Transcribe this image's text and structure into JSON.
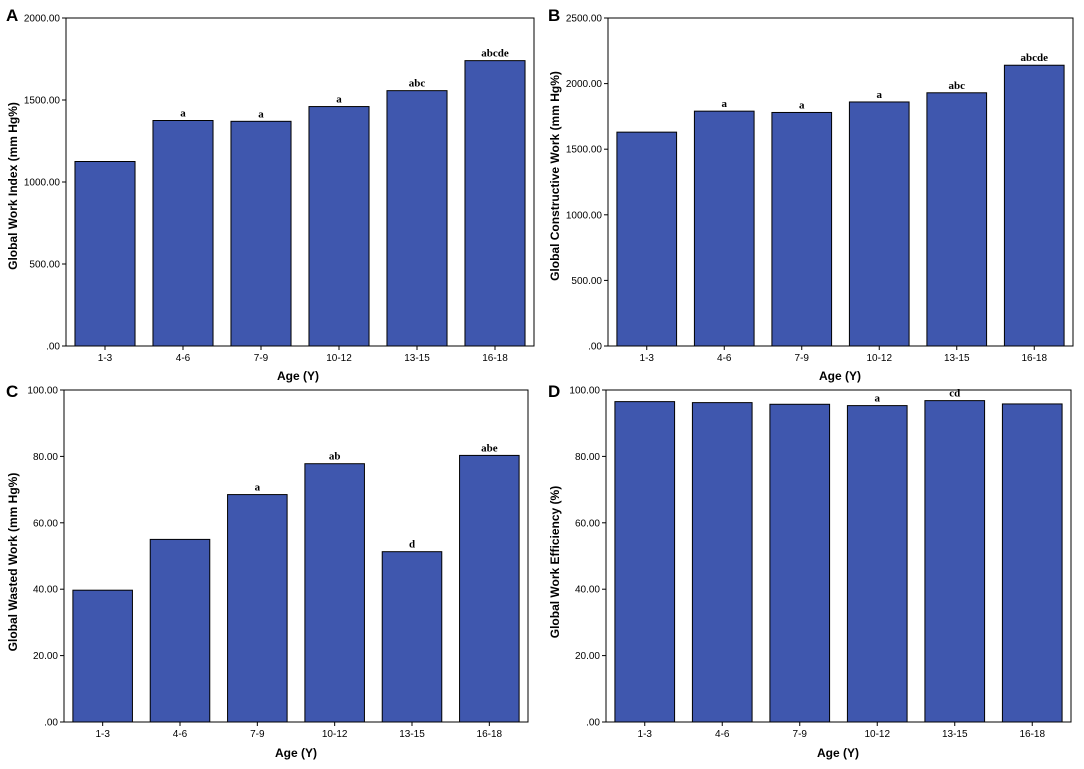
{
  "colors": {
    "bar_fill": "#3f57ae",
    "bar_stroke": "#000000",
    "frame": "#000000"
  },
  "chart_data": [
    {
      "type": "bar",
      "panel": "A",
      "categories": [
        "1-3",
        "4-6",
        "7-9",
        "10-12",
        "13-15",
        "16-18"
      ],
      "values": [
        1125,
        1375,
        1370,
        1460,
        1557,
        1740
      ],
      "significance": [
        "",
        "a",
        "a",
        "a",
        "abc",
        "abcde"
      ],
      "xlabel": "Age (Y)",
      "ylabel": "Global Work Index (mm Hg%)",
      "ylim": [
        0,
        2000
      ],
      "yticks": [
        0,
        500,
        1000,
        1500,
        2000
      ],
      "ytick_labels": [
        ".00",
        "500.00",
        "1000.00",
        "1500.00",
        "2000.00"
      ]
    },
    {
      "type": "bar",
      "panel": "B",
      "categories": [
        "1-3",
        "4-6",
        "7-9",
        "10-12",
        "13-15",
        "16-18"
      ],
      "values": [
        1630,
        1790,
        1780,
        1860,
        1930,
        2140
      ],
      "significance": [
        "",
        "a",
        "a",
        "a",
        "abc",
        "abcde"
      ],
      "xlabel": "Age (Y)",
      "ylabel": "Global Constructive Work (mm Hg%)",
      "ylim": [
        0,
        2500
      ],
      "yticks": [
        0,
        500,
        1000,
        1500,
        2000,
        2500
      ],
      "ytick_labels": [
        ".00",
        "500.00",
        "1000.00",
        "1500.00",
        "2000.00",
        "2500.00"
      ]
    },
    {
      "type": "bar",
      "panel": "C",
      "categories": [
        "1-3",
        "4-6",
        "7-9",
        "10-12",
        "13-15",
        "16-18"
      ],
      "values": [
        39.7,
        55.0,
        68.5,
        77.8,
        51.3,
        80.3
      ],
      "significance": [
        "",
        "",
        "a",
        "ab",
        "d",
        "abe"
      ],
      "xlabel": "Age (Y)",
      "ylabel": "Global Wasted Work (mm Hg%)",
      "ylim": [
        0,
        100
      ],
      "yticks": [
        0,
        20,
        40,
        60,
        80,
        100
      ],
      "ytick_labels": [
        ".00",
        "20.00",
        "40.00",
        "60.00",
        "80.00",
        "100.00"
      ]
    },
    {
      "type": "bar",
      "panel": "D",
      "categories": [
        "1-3",
        "4-6",
        "7-9",
        "10-12",
        "13-15",
        "16-18"
      ],
      "values": [
        96.5,
        96.2,
        95.7,
        95.3,
        96.8,
        95.8
      ],
      "significance": [
        "",
        "",
        "",
        "a",
        "cd",
        ""
      ],
      "xlabel": "Age (Y)",
      "ylabel": "Global Work Efficiency (%)",
      "ylim": [
        0,
        100
      ],
      "yticks": [
        0,
        20,
        40,
        60,
        80,
        100
      ],
      "ytick_labels": [
        ".00",
        "20.00",
        "40.00",
        "60.00",
        "80.00",
        "100.00"
      ]
    }
  ]
}
